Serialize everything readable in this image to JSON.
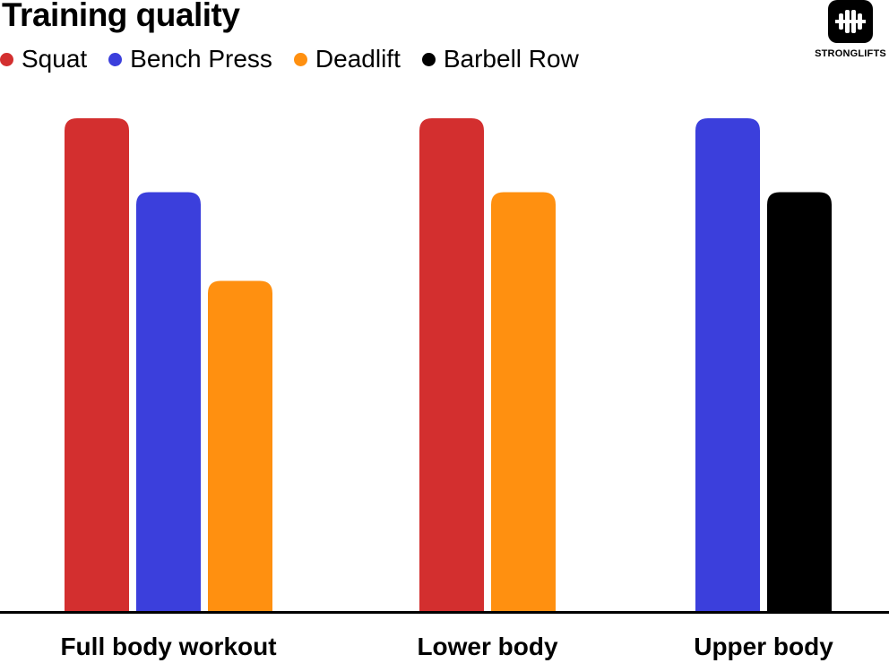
{
  "title": "Training quality",
  "logo": {
    "text": "STRONGLIFTS",
    "icon": "barbell-plates-icon"
  },
  "colors": {
    "Squat": "#d32f2f",
    "Bench Press": "#3b3fdc",
    "Deadlift": "#ff9010",
    "Barbell Row": "#000000",
    "axis": "#000000"
  },
  "chart_data": {
    "type": "bar",
    "title": "Training quality",
    "xlabel": "",
    "ylabel": "",
    "grid": false,
    "legend_position": "top-left",
    "categories": [
      "Full body workout",
      "Lower body",
      "Upper body"
    ],
    "series": [
      {
        "name": "Squat",
        "values": [
          100,
          100,
          null
        ]
      },
      {
        "name": "Bench Press",
        "values": [
          85,
          null,
          100
        ]
      },
      {
        "name": "Deadlift",
        "values": [
          67,
          85,
          null
        ]
      },
      {
        "name": "Barbell Row",
        "values": [
          null,
          null,
          85
        ]
      }
    ],
    "ylim": [
      0,
      100
    ]
  }
}
